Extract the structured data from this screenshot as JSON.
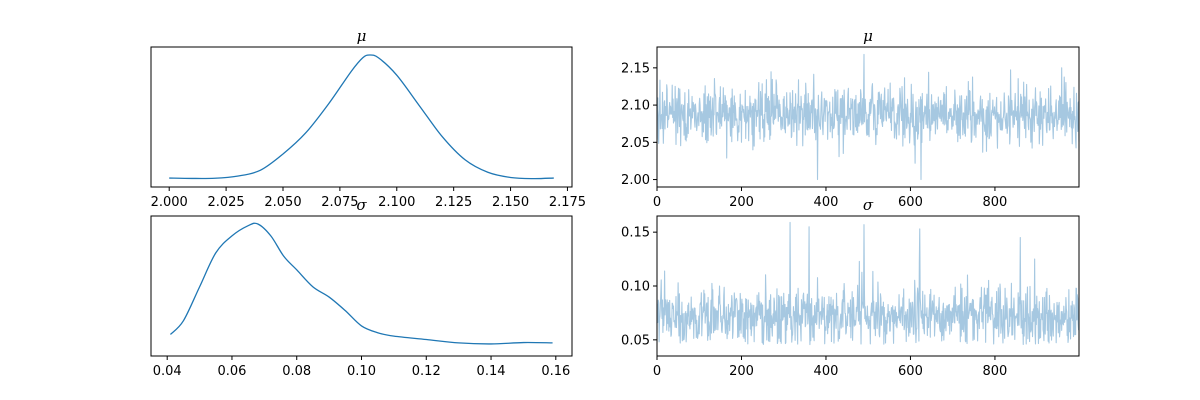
{
  "chart_data": [
    {
      "type": "line",
      "title": "μ",
      "subtype": "kde",
      "xlabel": "",
      "ylabel": "",
      "xlim": [
        1.992,
        2.177
      ],
      "yticks_shown": false,
      "xticks": [
        "2.000",
        "2.025",
        "2.050",
        "2.075",
        "2.100",
        "2.125",
        "2.150",
        "2.175"
      ],
      "line_color": "#1f77b4",
      "series": [
        {
          "x": [
            2.0,
            2.01,
            2.02,
            2.03,
            2.04,
            2.05,
            2.06,
            2.07,
            2.08,
            2.085,
            2.088,
            2.092,
            2.1,
            2.11,
            2.12,
            2.13,
            2.14,
            2.15,
            2.16,
            2.169
          ],
          "y": [
            0.5,
            0.3,
            0.4,
            1.5,
            4.5,
            13,
            24,
            39,
            56,
            63,
            64.5,
            63,
            54,
            38,
            22,
            10,
            3.5,
            0.8,
            0.2,
            0.5
          ]
        }
      ]
    },
    {
      "type": "line",
      "title": "μ",
      "subtype": "trace",
      "xlabel": "",
      "ylabel": "",
      "xlim": [
        0,
        999
      ],
      "ylim": [
        1.99,
        2.178
      ],
      "xticks": [
        "0",
        "200",
        "400",
        "600",
        "800"
      ],
      "yticks": [
        "2.00",
        "2.05",
        "2.10",
        "2.15"
      ],
      "line_color": "#a6c8e1",
      "n_draws": 1000,
      "center": 2.087,
      "spread": 0.02,
      "extremes": [
        {
          "x": 380,
          "y": 2.0
        },
        {
          "x": 490,
          "y": 2.168
        },
        {
          "x": 625,
          "y": 2.0
        },
        {
          "x": 958,
          "y": 2.15
        }
      ]
    },
    {
      "type": "line",
      "title": "σ",
      "subtype": "kde",
      "xlabel": "",
      "ylabel": "",
      "xlim": [
        0.035,
        0.165
      ],
      "yticks_shown": false,
      "xticks": [
        "0.04",
        "0.06",
        "0.08",
        "0.10",
        "0.12",
        "0.14",
        "0.16"
      ],
      "line_color": "#1f77b4",
      "series": [
        {
          "x": [
            0.041,
            0.045,
            0.05,
            0.055,
            0.06,
            0.065,
            0.068,
            0.072,
            0.076,
            0.08,
            0.085,
            0.09,
            0.095,
            0.1,
            0.105,
            0.11,
            0.12,
            0.13,
            0.14,
            0.15,
            0.159
          ],
          "y": [
            4,
            8,
            18,
            28,
            33,
            36,
            36.5,
            33,
            27,
            23,
            18,
            15,
            11,
            6.5,
            4.5,
            3.5,
            2.5,
            1.5,
            1.2,
            1.6,
            1.5
          ]
        }
      ]
    },
    {
      "type": "line",
      "title": "σ",
      "subtype": "trace",
      "xlabel": "",
      "ylabel": "",
      "xlim": [
        0,
        999
      ],
      "ylim": [
        0.035,
        0.165
      ],
      "xticks": [
        "0",
        "200",
        "400",
        "600",
        "800"
      ],
      "yticks": [
        "0.05",
        "0.10",
        "0.15"
      ],
      "line_color": "#a6c8e1",
      "n_draws": 1000,
      "center": 0.072,
      "spread": 0.012,
      "extremes": [
        {
          "x": 315,
          "y": 0.159
        },
        {
          "x": 360,
          "y": 0.155
        },
        {
          "x": 490,
          "y": 0.157
        },
        {
          "x": 622,
          "y": 0.153
        },
        {
          "x": 860,
          "y": 0.145
        }
      ]
    }
  ]
}
